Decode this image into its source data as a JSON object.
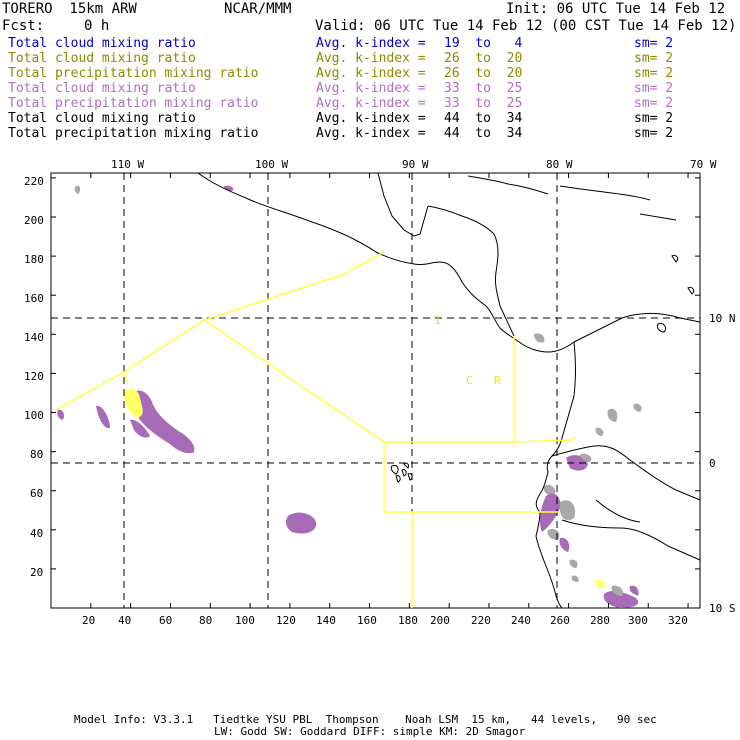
{
  "header": {
    "model": "TORERO  15km ARW",
    "org": "NCAR/MMM",
    "init": "Init: 06 UTC Tue 14 Feb 12",
    "fcst_label": "Fcst:",
    "fcst_value": "0 h",
    "valid": "Valid: 06 UTC Tue 14 Feb 12 (00 CST Tue 14 Feb 12)"
  },
  "colors": {
    "blue": "#0000cc",
    "olive": "#8c8c00",
    "purple": "#b070c0",
    "black": "#000000",
    "yellow_line": "#ffff40",
    "yellow_fill": "#ffff66",
    "gray_fill": "#a9a9a9",
    "purple_fill": "#a86bb8"
  },
  "legend": [
    {
      "field": "Total cloud mixing ratio",
      "kindex": "Avg. k-index = ",
      "range": "19  to   4",
      "sm": "sm= 2",
      "color": "#0000cc"
    },
    {
      "field": "Total cloud mixing ratio",
      "kindex": "Avg. k-index = ",
      "range": "26  to  20",
      "sm": "sm= 2",
      "color": "#8c8c00"
    },
    {
      "field": "Total precipitation mixing ratio",
      "kindex": "Avg. k-index = ",
      "range": "26  to  20",
      "sm": "sm= 2",
      "color": "#8c8c00"
    },
    {
      "field": "Total cloud mixing ratio",
      "kindex": "Avg. k-index = ",
      "range": "33  to  25",
      "sm": "sm= 2",
      "color": "#b070c0"
    },
    {
      "field": "Total precipitation mixing ratio",
      "kindex": "Avg. k-index = ",
      "range": "33  to  25",
      "sm": "sm= 2",
      "color": "#b070c0"
    },
    {
      "field": "Total cloud mixing ratio",
      "kindex": "Avg. k-index = ",
      "range": "44  to  34",
      "sm": "sm= 2",
      "color": "#000000"
    },
    {
      "field": "Total precipitation mixing ratio",
      "kindex": "Avg. k-index = ",
      "range": "44  to  34",
      "sm": "sm= 2",
      "color": "#000000"
    }
  ],
  "map": {
    "lon_labels": [
      "110 W",
      "100 W",
      "90 W",
      "80 W",
      "70 W"
    ],
    "lat_labels": [
      "10 N",
      "0",
      "10 S"
    ],
    "x_ticks": [
      "20",
      "40",
      "60",
      "80",
      "100",
      "120",
      "140",
      "160",
      "180",
      "200",
      "220",
      "240",
      "260",
      "280",
      "300",
      "320"
    ],
    "y_ticks": [
      "20",
      "40",
      "60",
      "80",
      "100",
      "120",
      "140",
      "160",
      "180",
      "200",
      "220"
    ],
    "region_labels": [
      "1",
      "C",
      "R"
    ]
  },
  "footer": {
    "line1": "Model Info: V3.3.1   Tiedtke YSU PBL  Thompson    Noah LSM  15 km,   44 levels,   90 sec",
    "line2": "LW: Godd SW: Goddard DIFF: simple KM: 2D Smagor"
  }
}
